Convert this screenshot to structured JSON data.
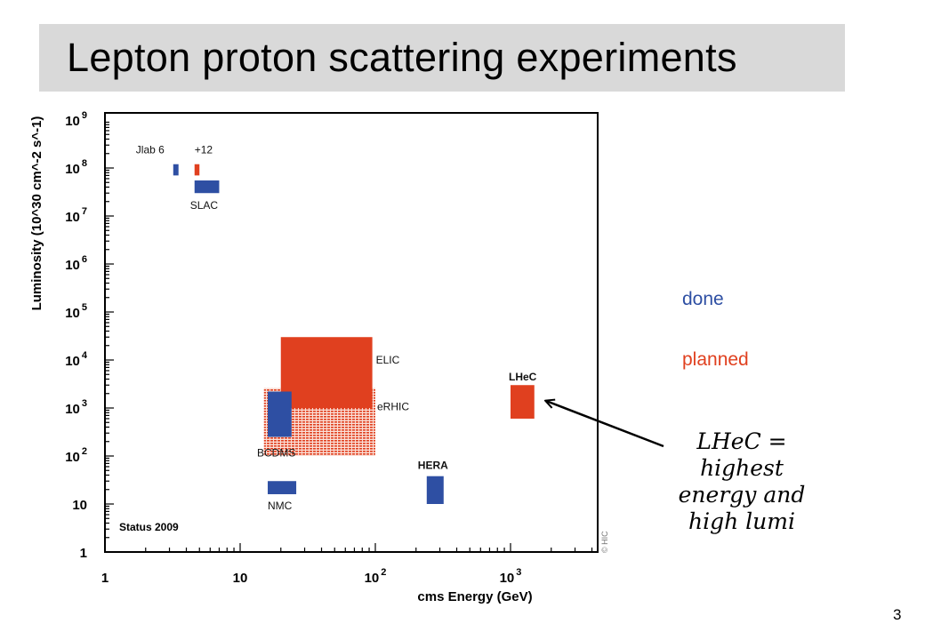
{
  "slide": {
    "title": "Lepton proton scattering experiments",
    "page_number": "3",
    "annotation_lines": [
      "LHeC =",
      "highest",
      "energy and",
      "high  lumi"
    ],
    "legend": [
      {
        "label": "done",
        "color": "#2e4fa3"
      },
      {
        "label": "planned",
        "color": "#e0401f"
      }
    ]
  },
  "chart_data": {
    "type": "rect",
    "xlabel": "cms Energy  (GeV)",
    "ylabel": "Luminosity (10^30 cm^-2 s^-1)",
    "xscale": "log",
    "yscale": "log",
    "xlim": [
      1,
      4500
    ],
    "ylim": [
      1,
      1000000000
    ],
    "x_ticks": [
      {
        "base": "1",
        "exp": ""
      },
      {
        "base": "10",
        "exp": ""
      },
      {
        "base": "10",
        "exp": "2"
      },
      {
        "base": "10",
        "exp": "3"
      }
    ],
    "y_ticks": [
      {
        "base": "1",
        "exp": ""
      },
      {
        "base": "10",
        "exp": ""
      },
      {
        "base": "10",
        "exp": "2"
      },
      {
        "base": "10",
        "exp": "3"
      },
      {
        "base": "10",
        "exp": "4"
      },
      {
        "base": "10",
        "exp": "5"
      },
      {
        "base": "10",
        "exp": "6"
      },
      {
        "base": "10",
        "exp": "7"
      },
      {
        "base": "10",
        "exp": "8"
      },
      {
        "base": "10",
        "exp": "9"
      }
    ],
    "note": "Status 2009",
    "side_label": "© HIC",
    "colors": {
      "done": "#2e4fa3",
      "planned": "#e0401f"
    },
    "experiments": [
      {
        "name": "Jlab 6",
        "status": "done",
        "x": [
          3.2,
          3.5
        ],
        "y": [
          70000000,
          120000000
        ]
      },
      {
        "name": "+12",
        "status": "planned",
        "x": [
          4.6,
          5.0
        ],
        "y": [
          70000000,
          120000000
        ]
      },
      {
        "name": "SLAC",
        "status": "done",
        "x": [
          4.6,
          7.0
        ],
        "y": [
          30000000,
          55000000
        ]
      },
      {
        "name": "eRHIC",
        "status": "planned",
        "x": [
          15,
          100
        ],
        "y": [
          100,
          2600
        ],
        "pattern": "dotted"
      },
      {
        "name": "ELIC",
        "status": "planned",
        "x": [
          20,
          95
        ],
        "y": [
          1000,
          30000
        ]
      },
      {
        "name": "BCDMS",
        "status": "done",
        "x": [
          16,
          24
        ],
        "y": [
          250,
          2200
        ]
      },
      {
        "name": "NMC",
        "status": "done",
        "x": [
          16,
          26
        ],
        "y": [
          16,
          30
        ]
      },
      {
        "name": "HERA",
        "status": "done",
        "x": [
          240,
          320
        ],
        "y": [
          10,
          38
        ]
      },
      {
        "name": "LHeC",
        "status": "planned",
        "x": [
          1000,
          1500
        ],
        "y": [
          600,
          3000
        ]
      }
    ]
  }
}
